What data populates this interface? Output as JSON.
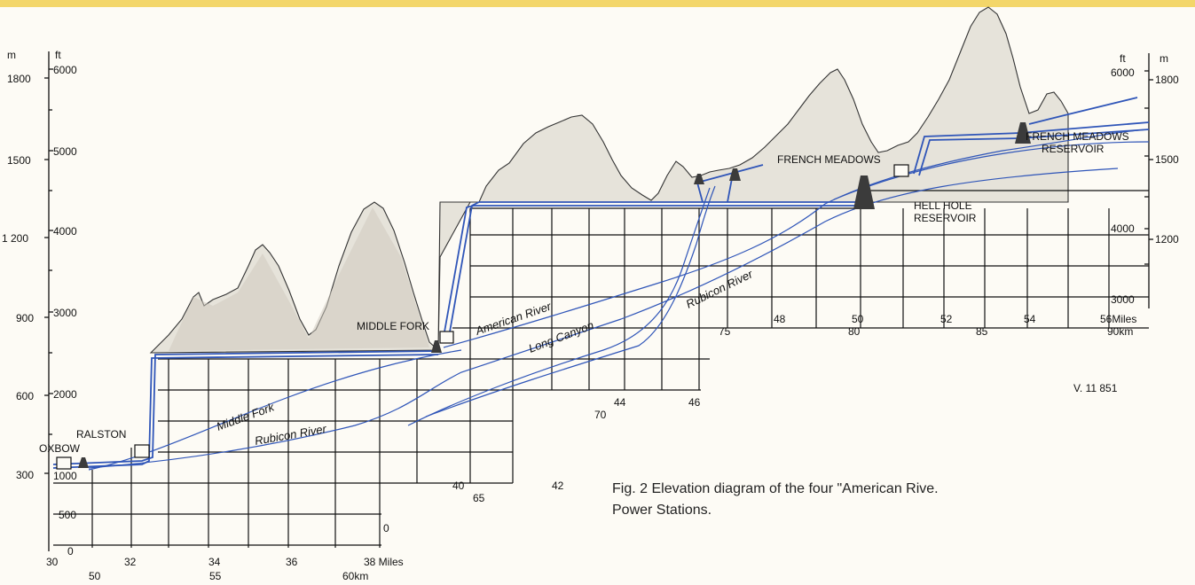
{
  "axes": {
    "left_m_unit": "m",
    "left_ft_unit": "ft",
    "right_ft_unit": "ft",
    "right_m_unit": "m",
    "left_m_ticks": [
      "1800",
      "1500",
      "1 200",
      "900",
      "600",
      "300"
    ],
    "left_ft_ticks": [
      "6000",
      "5000",
      "4000",
      "3000",
      "2000",
      "1000",
      "500",
      "0"
    ],
    "right_ft_ticks": [
      "6000",
      "4000",
      "3000"
    ],
    "right_m_ticks": [
      "1800",
      "1500",
      "1200"
    ],
    "bottom_axis_end": "0"
  },
  "distance_labels": {
    "s1_miles": [
      "30",
      "32",
      "34",
      "36",
      "38 Miles"
    ],
    "s1_km": [
      "50",
      "55",
      "60km"
    ],
    "s2_miles": [
      "40",
      "42"
    ],
    "s2_km": [
      "65"
    ],
    "s3_miles": [
      "44",
      "46"
    ],
    "s3_km": [
      "70"
    ],
    "s4_miles": [
      "48",
      "50"
    ],
    "s4_km": [
      "75",
      "80"
    ],
    "s5_miles": [
      "52",
      "54",
      "56Miles"
    ],
    "s5_km": [
      "85",
      "90km"
    ]
  },
  "stations": {
    "oxbow": "OXBOW",
    "ralston": "RALSTON",
    "middle_fork": "MIDDLE FORK",
    "french_meadows": "FRENCH MEADOWS"
  },
  "reservoirs": {
    "french_meadows_1": "FRENCH MEADOWS",
    "french_meadows_2": "RESERVOIR",
    "hell_hole_1": "HELL HOLE",
    "hell_hole_2": "RESERVOIR"
  },
  "rivers": {
    "middle_fork": "Middle Fork",
    "rubicon_1": "Rubicon River",
    "american": "American River",
    "long_canyon": "Long Canyon",
    "rubicon_2": "Rubicon River"
  },
  "ref_code": "V. 11 851",
  "caption": {
    "line1": "Fig. 2    Elevation diagram of the four \"American Rive.",
    "line2": "Power Stations."
  },
  "colors": {
    "waterway": "#2f55b8",
    "terrain": "#e6e3da",
    "grid": "#111111",
    "top_band": "#f3d66a"
  }
}
